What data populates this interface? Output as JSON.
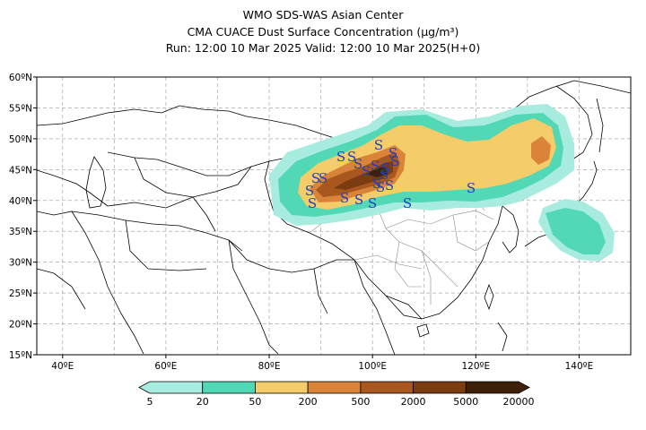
{
  "header": {
    "line1": "WMO SDS-WAS Asian Center",
    "line2": "CMA CUACE Dust Surface Concentration (µg/m³)",
    "line3": "Run: 12:00 10 Mar 2025    Valid: 12:00 10 Mar 2025(H+0)"
  },
  "map": {
    "lat_labels": [
      "60ºN",
      "55ºN",
      "50ºN",
      "45ºN",
      "40ºN",
      "35ºN",
      "30ºN",
      "25ºN",
      "20ºN",
      "15ºN"
    ],
    "lon_labels": [
      "40ºE",
      "60ºE",
      "80ºE",
      "100ºE",
      "120ºE",
      "140ºE"
    ],
    "lon_range": [
      35,
      150
    ],
    "lat_range": [
      15,
      60
    ],
    "grid": true
  },
  "colorbar": {
    "labels": [
      "5",
      "20",
      "50",
      "200",
      "500",
      "2000",
      "5000",
      "20000"
    ],
    "colors": [
      "#a8ece0",
      "#52d8b4",
      "#f5cc6a",
      "#d98438",
      "#a8581f",
      "#7a3c10",
      "#3d2008"
    ]
  },
  "storm_symbol": "S"
}
